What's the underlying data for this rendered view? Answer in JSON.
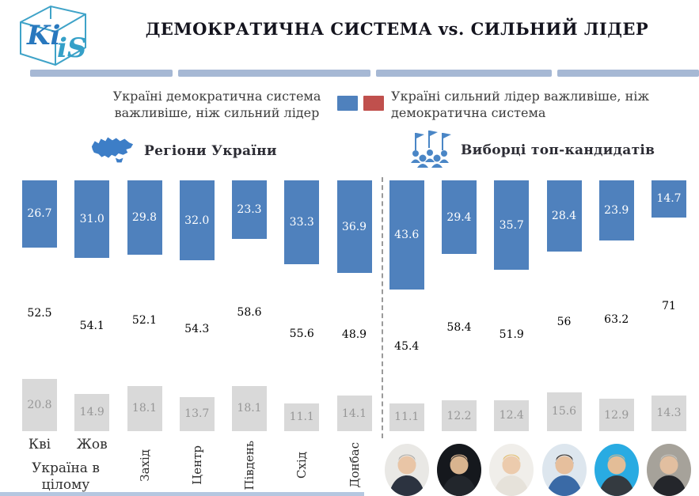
{
  "logo": {
    "line1": "Ki",
    "line2": "iS"
  },
  "title": "ДЕМОКРАТИЧНА СИСТЕМА vs. СИЛЬНИЙ ЛІДЕР",
  "legend": {
    "items": [
      {
        "name": "democracy",
        "label": "Україні демократична система важливіше, ніж сильний лідер",
        "color": "#4f81bd"
      },
      {
        "name": "strong_leader",
        "label": "Україні сильний лідер важливіше, ніж демократична система",
        "color": "#c0504d"
      }
    ]
  },
  "sections": [
    {
      "label": "Регіони України",
      "icon": "ukraine-map-icon"
    },
    {
      "label": "Виборці топ-кандидатів",
      "icon": "voters-crowd-icon"
    }
  ],
  "footer_group_label": "Україна в цілому",
  "chart_data": {
    "type": "bar",
    "stacked": true,
    "unit": "percent",
    "ylim": [
      0,
      100
    ],
    "series_names": [
      "democracy",
      "strong_leader",
      "undecided"
    ],
    "colors": {
      "democracy": "#4f81bd",
      "strong_leader": "#c0504d",
      "undecided": "#d9d9d9"
    },
    "bars": [
      {
        "group": "regions",
        "label": "Кві",
        "label_layout": "horizontal",
        "democracy": "26.7",
        "strong_leader": "52.5",
        "undecided": "20.8"
      },
      {
        "group": "regions",
        "label": "Жов",
        "label_layout": "horizontal",
        "democracy": "31.0",
        "strong_leader": "54.1",
        "undecided": "14.9"
      },
      {
        "group": "regions",
        "label": "Захід",
        "label_layout": "vertical",
        "democracy": "29.8",
        "strong_leader": "52.1",
        "undecided": "18.1"
      },
      {
        "group": "regions",
        "label": "Центр",
        "label_layout": "vertical",
        "democracy": "32.0",
        "strong_leader": "54.3",
        "undecided": "13.7"
      },
      {
        "group": "regions",
        "label": "Південь",
        "label_layout": "vertical",
        "democracy": "23.3",
        "strong_leader": "58.6",
        "undecided": "18.1"
      },
      {
        "group": "regions",
        "label": "Схід",
        "label_layout": "vertical",
        "democracy": "33.3",
        "strong_leader": "55.6",
        "undecided": "11.1"
      },
      {
        "group": "regions",
        "label": "Донбас",
        "label_layout": "vertical",
        "democracy": "36.9",
        "strong_leader": "48.9",
        "undecided": "14.1"
      },
      {
        "group": "candidates",
        "label": "",
        "avatar": 0,
        "democracy": "43.6",
        "strong_leader": "45.4",
        "undecided": "11.1"
      },
      {
        "group": "candidates",
        "label": "",
        "avatar": 1,
        "democracy": "29.4",
        "strong_leader": "58.4",
        "undecided": "12.2"
      },
      {
        "group": "candidates",
        "label": "",
        "avatar": 2,
        "democracy": "35.7",
        "strong_leader": "51.9",
        "undecided": "12.4"
      },
      {
        "group": "candidates",
        "label": "",
        "avatar": 3,
        "democracy": "28.4",
        "strong_leader": "56",
        "undecided": "15.6"
      },
      {
        "group": "candidates",
        "label": "",
        "avatar": 4,
        "democracy": "23.9",
        "strong_leader": "63.2",
        "undecided": "12.9"
      },
      {
        "group": "candidates",
        "label": "",
        "avatar": 5,
        "democracy": "14.7",
        "strong_leader": "71",
        "undecided": "14.3"
      }
    ]
  },
  "avatars": [
    {
      "bg": "#e9e8e5",
      "skin": "#e9c5a6",
      "hair": "#b3b1ad",
      "suit": "#2c3340"
    },
    {
      "bg": "#15181d",
      "skin": "#d9b48f",
      "hair": "#d9b48f",
      "suit": "#22262c"
    },
    {
      "bg": "#f0eeea",
      "skin": "#eccbad",
      "hair": "#e3c075",
      "suit": "#e6e2da"
    },
    {
      "bg": "#dde6ee",
      "skin": "#e6bf9d",
      "hair": "#39302a",
      "suit": "#3a6aa6"
    },
    {
      "bg": "#29abe2",
      "skin": "#e3bd97",
      "hair": "#c9b795",
      "suit": "#343a40"
    },
    {
      "bg": "#a6a29a",
      "skin": "#e2bfa0",
      "hair": "#c4c1bb",
      "suit": "#24262b"
    }
  ]
}
